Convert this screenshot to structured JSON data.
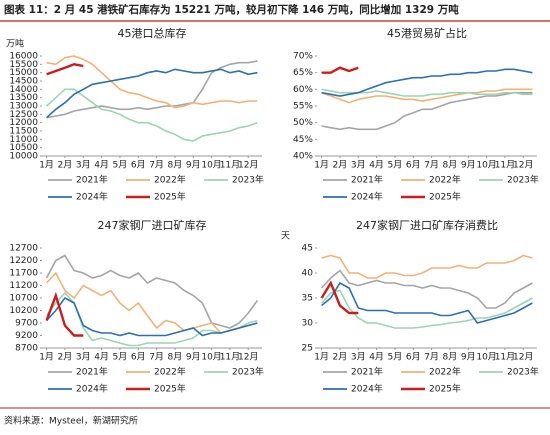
{
  "header": {
    "title": "图表 11：2 月 45 港铁矿石库存为 15221 万吨，较月初下降 146 万吨，同比增加 1329 万吨"
  },
  "source": "资料来源：Mysteel，新湖研究所",
  "chart_data": [
    {
      "type": "line",
      "title": "45港口总库存",
      "y_label": "万吨",
      "categories": [
        "1月",
        null,
        "2月",
        null,
        "3月",
        null,
        "4月",
        null,
        "5月",
        null,
        "6月",
        null,
        "7月",
        null,
        "8月",
        null,
        "9月",
        null,
        "10月",
        null,
        "11月",
        null,
        "12月",
        null
      ],
      "ylim": [
        10000,
        16000
      ],
      "yticks": [
        10000,
        10500,
        11000,
        11500,
        12000,
        12500,
        13000,
        13500,
        14000,
        14500,
        15000,
        15500,
        16000
      ],
      "series": [
        {
          "name": "2021年",
          "color": "#a5a5a5",
          "values": [
            12300,
            12400,
            12500,
            12700,
            12800,
            12900,
            13000,
            12900,
            12800,
            12800,
            12900,
            12800,
            12900,
            13000,
            13000,
            13100,
            13200,
            14000,
            15000,
            15300,
            15500,
            15600,
            15600,
            15700
          ]
        },
        {
          "name": "2022年",
          "color": "#f0b27a",
          "values": [
            15600,
            15500,
            15900,
            16000,
            15800,
            15500,
            15000,
            14500,
            14000,
            13800,
            13700,
            13500,
            13300,
            13200,
            12900,
            13000,
            13200,
            13100,
            13200,
            13300,
            13300,
            13200,
            13300,
            13300
          ]
        },
        {
          "name": "2023年",
          "color": "#9dd4b2",
          "values": [
            13000,
            13500,
            14000,
            14000,
            13600,
            13200,
            12800,
            12700,
            12500,
            12200,
            12000,
            12000,
            11800,
            11500,
            11300,
            11000,
            10900,
            11200,
            11300,
            11400,
            11500,
            11700,
            11800,
            12000
          ]
        },
        {
          "name": "2024年",
          "color": "#2e6fb0",
          "values": [
            12300,
            12800,
            13200,
            13700,
            14000,
            14300,
            14400,
            14500,
            14600,
            14700,
            14800,
            15000,
            15100,
            15000,
            15200,
            15100,
            15000,
            15000,
            15100,
            15200,
            15000,
            15100,
            14900,
            15000
          ]
        },
        {
          "name": "2025年",
          "color": "#c81e1e",
          "values": [
            14900,
            15100,
            15300,
            15500,
            15400,
            null,
            null,
            null,
            null,
            null,
            null,
            null,
            null,
            null,
            null,
            null,
            null,
            null,
            null,
            null,
            null,
            null,
            null,
            null
          ]
        }
      ]
    },
    {
      "type": "line",
      "title": "45港贸易矿占比",
      "categories": [
        "1月",
        null,
        "2月",
        null,
        "3月",
        null,
        "4月",
        null,
        "5月",
        null,
        "6月",
        null,
        "7月",
        null,
        "8月",
        null,
        "9月",
        null,
        "10月",
        null,
        "11月",
        null,
        "12月",
        null
      ],
      "ylim": [
        40,
        70
      ],
      "yticks": [
        {
          "value": 40,
          "label": "40%"
        },
        {
          "value": 45,
          "label": "45%"
        },
        {
          "value": 50,
          "label": "50%"
        },
        {
          "value": 55,
          "label": "55%"
        },
        {
          "value": 60,
          "label": "60%"
        },
        {
          "value": 65,
          "label": "65%"
        },
        {
          "value": 70,
          "label": "70%"
        }
      ],
      "series": [
        {
          "name": "2021年",
          "color": "#a5a5a5",
          "values": [
            49,
            48.5,
            48,
            48.5,
            48,
            48,
            48,
            49,
            50,
            52,
            53,
            54,
            54,
            55,
            56,
            56.5,
            57,
            57.5,
            58,
            58,
            58.5,
            59,
            59,
            59
          ]
        },
        {
          "name": "2022年",
          "color": "#f0b27a",
          "values": [
            59,
            58,
            57,
            56,
            57,
            57.5,
            58,
            58,
            57.5,
            57,
            57,
            56.5,
            57,
            57.5,
            58,
            58.5,
            59,
            59,
            59.5,
            59.5,
            60,
            60,
            60,
            60
          ]
        },
        {
          "name": "2023年",
          "color": "#9dd4b2",
          "values": [
            60,
            59.5,
            59,
            59,
            59,
            59,
            59.5,
            59,
            58.5,
            58,
            58,
            58,
            58.5,
            58.5,
            59,
            59,
            59,
            58.5,
            58.5,
            58.5,
            59,
            59,
            58.5,
            58.5
          ]
        },
        {
          "name": "2024年",
          "color": "#2e6fb0",
          "values": [
            59,
            58.5,
            58,
            58.5,
            59,
            60,
            61,
            62,
            62.5,
            63,
            63.5,
            63.5,
            64,
            64,
            64.5,
            64.5,
            65,
            65,
            65.5,
            65.5,
            66,
            66,
            65.5,
            65
          ]
        },
        {
          "name": "2025年",
          "color": "#c81e1e",
          "values": [
            65,
            65,
            66.5,
            65.5,
            66.5,
            null,
            null,
            null,
            null,
            null,
            null,
            null,
            null,
            null,
            null,
            null,
            null,
            null,
            null,
            null,
            null,
            null,
            null,
            null
          ]
        }
      ]
    },
    {
      "type": "line",
      "title": "247家钢厂进口矿库存",
      "categories": [
        "1月",
        null,
        "2月",
        null,
        "3月",
        null,
        "4月",
        null,
        "5月",
        null,
        "6月",
        null,
        "7月",
        null,
        "8月",
        null,
        "9月",
        null,
        "10月",
        null,
        "11月",
        null,
        "12月",
        null
      ],
      "ylim": [
        8700,
        12700
      ],
      "yticks": [
        8700,
        9200,
        9700,
        10200,
        10700,
        11200,
        11700,
        12200,
        12700
      ],
      "series": [
        {
          "name": "2021年",
          "color": "#a5a5a5",
          "values": [
            11500,
            12200,
            12400,
            11800,
            11700,
            11500,
            11600,
            11800,
            11600,
            11500,
            11700,
            11300,
            11500,
            11400,
            11300,
            11000,
            10800,
            10500,
            9700,
            9600,
            9500,
            9700,
            10100,
            10600
          ]
        },
        {
          "name": "2022年",
          "color": "#f0b27a",
          "values": [
            11300,
            11700,
            11000,
            10700,
            11200,
            11000,
            10800,
            11000,
            10500,
            10200,
            10500,
            10000,
            9500,
            9800,
            9700,
            9400,
            9500,
            9600,
            9700,
            9300,
            9400,
            9500,
            9600,
            9700
          ]
        },
        {
          "name": "2023年",
          "color": "#9dd4b2",
          "values": [
            10000,
            10500,
            10900,
            10500,
            9500,
            9000,
            9100,
            9000,
            8900,
            8800,
            8800,
            8900,
            8900,
            8900,
            8900,
            9000,
            9100,
            9400,
            9400,
            9300,
            9400,
            9500,
            9700,
            9800
          ]
        },
        {
          "name": "2024年",
          "color": "#2e6fb0",
          "values": [
            9800,
            10200,
            10700,
            10500,
            9600,
            9400,
            9300,
            9300,
            9200,
            9300,
            9200,
            9200,
            9200,
            9200,
            9300,
            9400,
            9500,
            9200,
            9300,
            9300,
            9400,
            9500,
            9600,
            9700
          ]
        },
        {
          "name": "2025年",
          "color": "#c81e1e",
          "values": [
            9800,
            10800,
            9600,
            9200,
            9200,
            null,
            null,
            null,
            null,
            null,
            null,
            null,
            null,
            null,
            null,
            null,
            null,
            null,
            null,
            null,
            null,
            null,
            null,
            null
          ]
        }
      ]
    },
    {
      "type": "line",
      "title": "247家钢厂进口矿库存消费比",
      "y_label": "天",
      "categories": [
        "1月",
        null,
        "2月",
        null,
        "3月",
        null,
        "4月",
        null,
        "5月",
        null,
        "6月",
        null,
        "7月",
        null,
        "8月",
        null,
        "9月",
        null,
        "10月",
        null,
        "11月",
        null,
        "12月",
        null
      ],
      "ylim": [
        25,
        45
      ],
      "yticks": [
        25,
        30,
        35,
        40,
        45
      ],
      "series": [
        {
          "name": "2021年",
          "color": "#a5a5a5",
          "values": [
            37,
            39,
            40.5,
            38,
            37.5,
            38,
            38.5,
            38,
            38,
            37.5,
            37.5,
            37,
            37.5,
            37,
            37,
            36.5,
            36,
            35,
            33,
            33,
            34,
            36,
            37,
            38
          ]
        },
        {
          "name": "2022年",
          "color": "#f0b27a",
          "values": [
            43,
            43.5,
            43,
            40,
            40,
            39,
            39,
            40,
            40,
            39.5,
            39.5,
            40,
            41,
            41,
            41,
            41.5,
            41,
            41,
            42,
            42,
            42,
            42.5,
            43.5,
            43
          ]
        },
        {
          "name": "2023年",
          "color": "#9dd4b2",
          "values": [
            34,
            36,
            36.5,
            33,
            31,
            30,
            30,
            29.5,
            29,
            29,
            29,
            29.2,
            29.5,
            29.7,
            30,
            30.2,
            30.5,
            31,
            31,
            31.5,
            32,
            33,
            34,
            35
          ]
        },
        {
          "name": "2024年",
          "color": "#2e6fb0",
          "values": [
            33.5,
            35,
            38,
            37,
            33,
            32.5,
            32.5,
            32.5,
            32,
            32,
            32,
            32,
            32,
            31.5,
            31.5,
            32,
            32.5,
            30,
            30.5,
            31,
            31.5,
            32,
            33,
            34
          ]
        },
        {
          "name": "2025年",
          "color": "#c81e1e",
          "values": [
            35,
            38,
            33.5,
            32,
            32,
            null,
            null,
            null,
            null,
            null,
            null,
            null,
            null,
            null,
            null,
            null,
            null,
            null,
            null,
            null,
            null,
            null,
            null,
            null
          ]
        }
      ]
    }
  ]
}
